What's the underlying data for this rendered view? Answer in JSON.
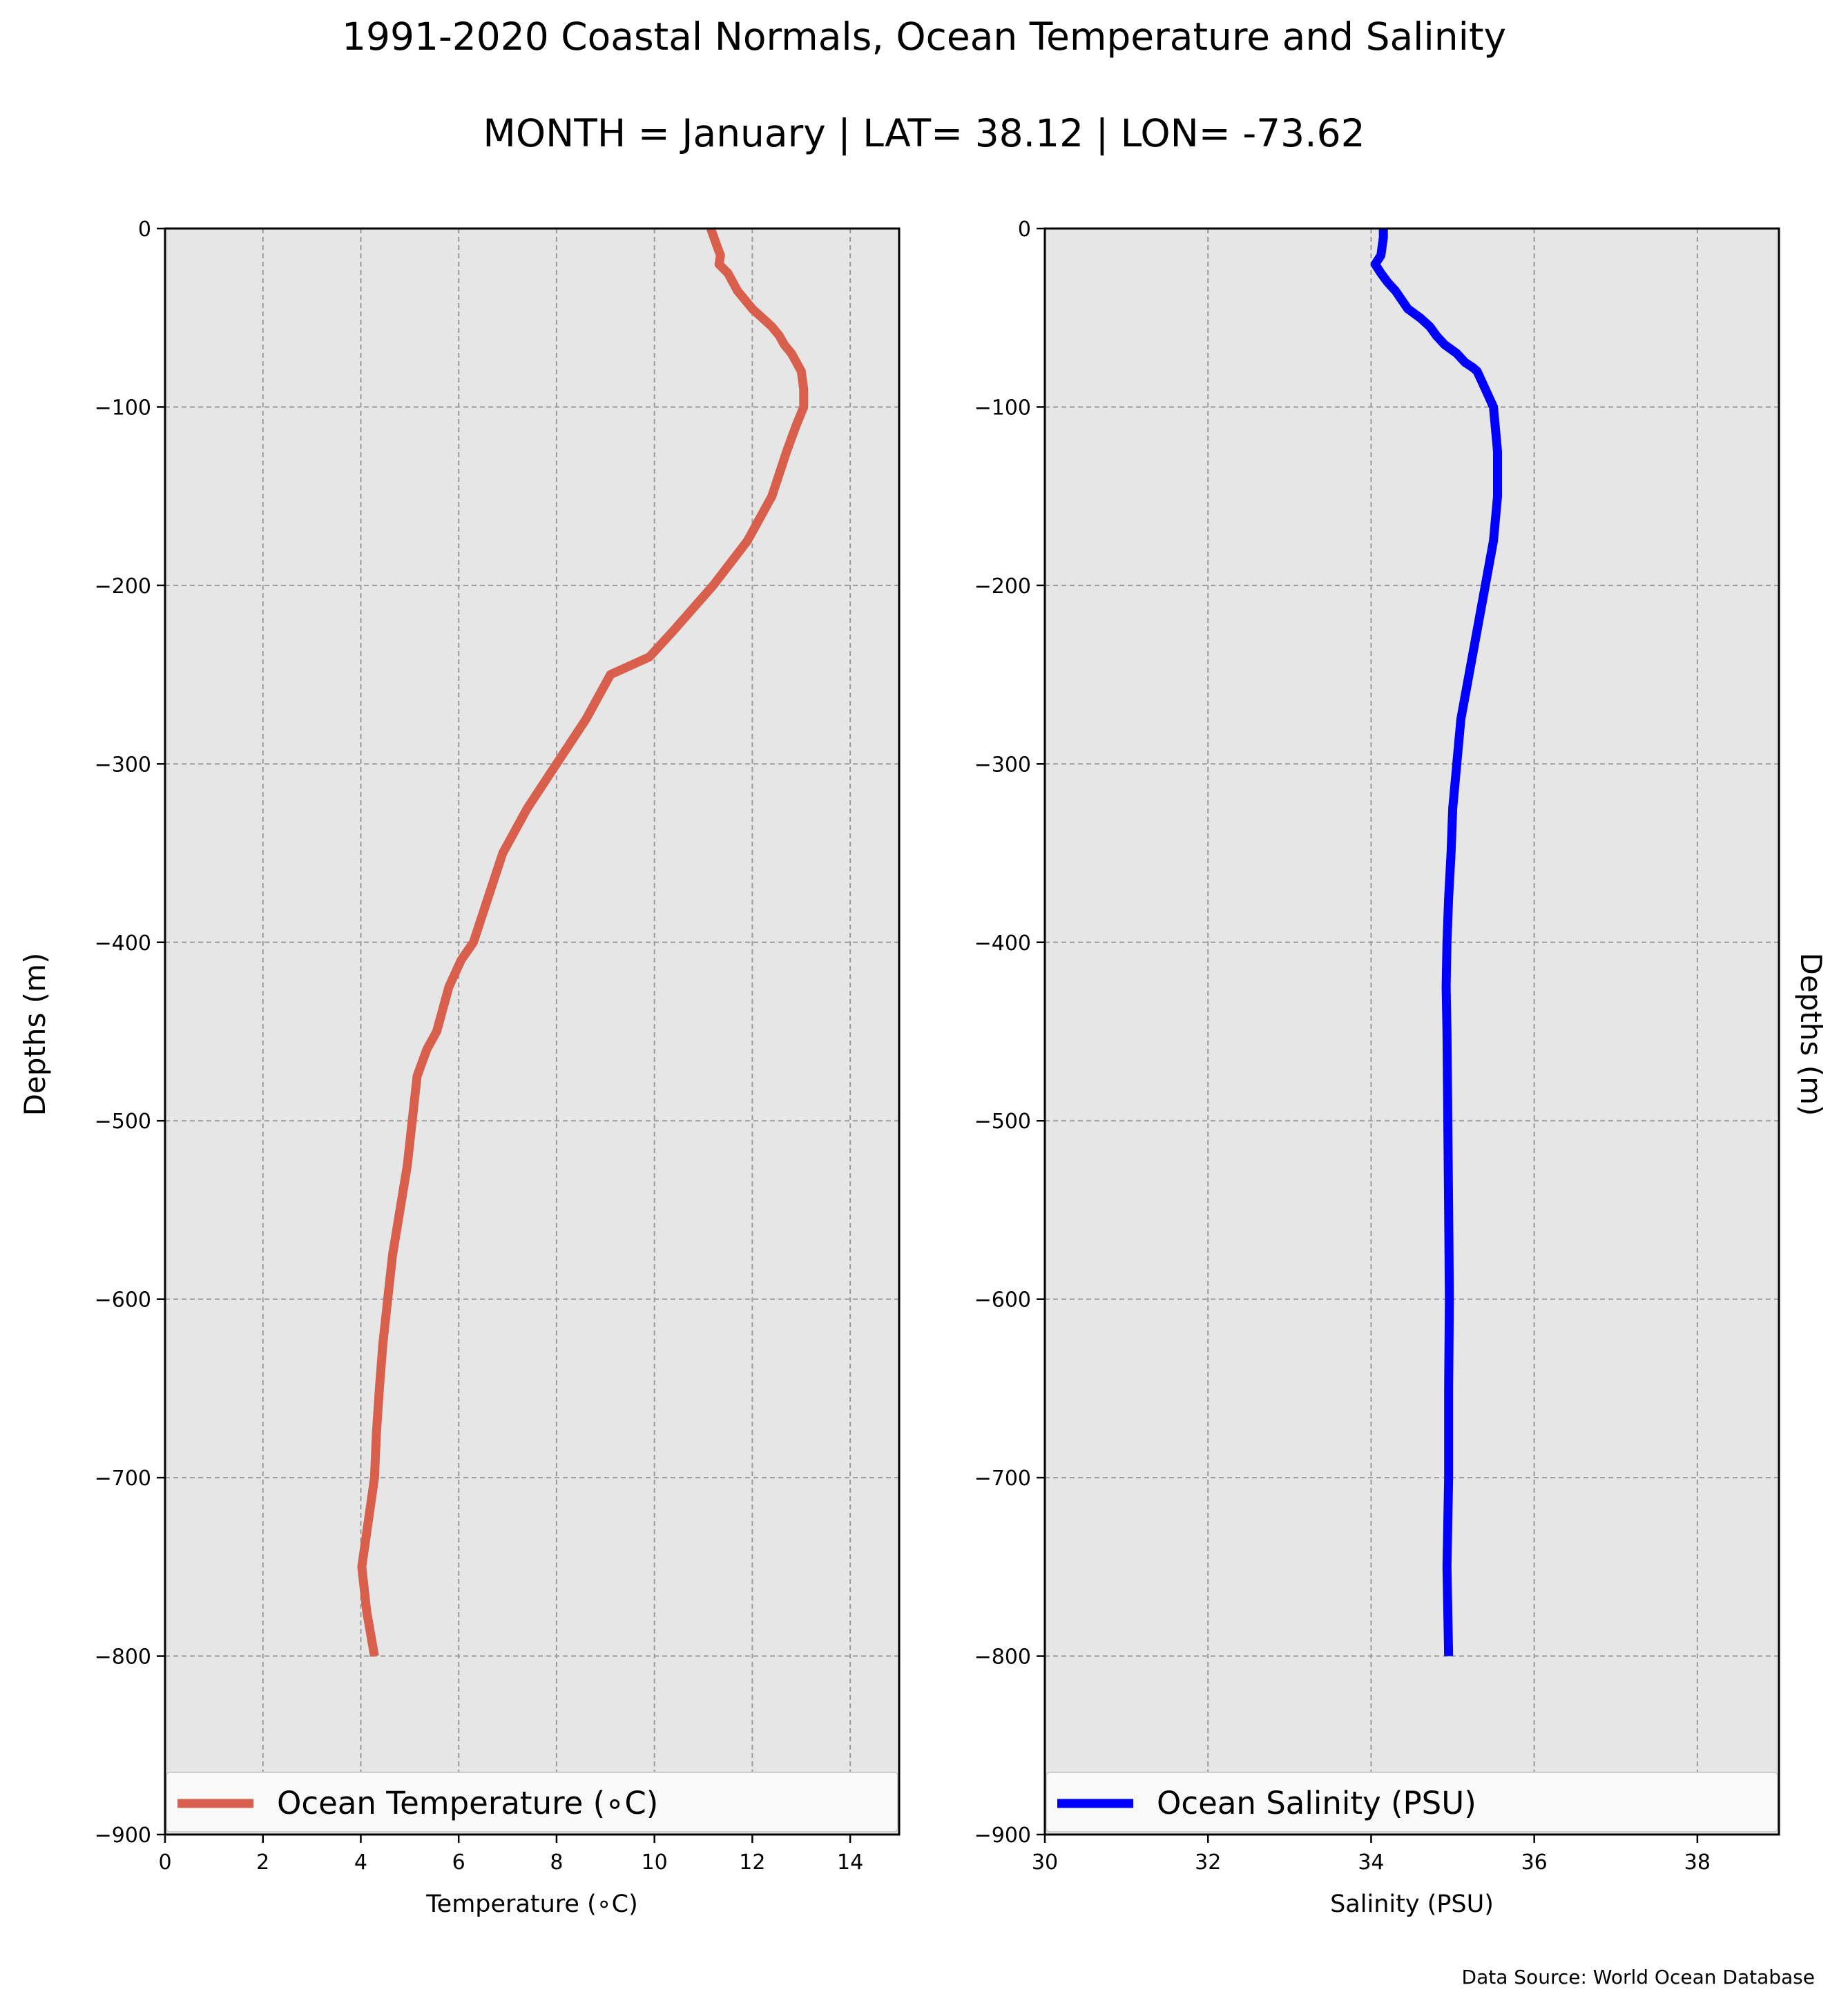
{
  "figure": {
    "title": "1991-2020 Coastal Normals, Ocean Temperature and Salinity",
    "subtitle": "MONTH = January | LAT= 38.12 | LON= -73.62",
    "source": "Data Source: World Ocean Database",
    "colors": {
      "panel_background": "#e6e6e6",
      "temperature": "#d95f4d",
      "salinity": "#0000ff"
    }
  },
  "chart_data": [
    {
      "type": "line",
      "xlabel": "Temperature (∘C)",
      "ylabel": "Depths (m)",
      "xlim": [
        0,
        15
      ],
      "ylim": [
        -900,
        0
      ],
      "xticks": [
        0,
        2,
        4,
        6,
        8,
        10,
        12,
        14
      ],
      "xtick_labels": [
        "0",
        "2",
        "4",
        "6",
        "8",
        "10",
        "12",
        "14"
      ],
      "yticks": [
        0,
        -100,
        -200,
        -300,
        -400,
        -500,
        -600,
        -700,
        -800,
        -900
      ],
      "ytick_labels": [
        "0",
        "−100",
        "−200",
        "−300",
        "−400",
        "−500",
        "−600",
        "−700",
        "−800",
        "−900"
      ],
      "grid": true,
      "legend": "bottom",
      "series": [
        {
          "name": "Ocean Temperature (∘C)",
          "color": "#d95f4d",
          "x": [
            11.15,
            11.28,
            11.35,
            11.32,
            11.5,
            11.6,
            11.7,
            11.85,
            12.0,
            12.2,
            12.4,
            12.55,
            12.65,
            12.8,
            12.9,
            13.0,
            13.05,
            13.05,
            12.9,
            12.7,
            12.4,
            11.9,
            11.2,
            10.4,
            9.9,
            9.1,
            8.6,
            8.0,
            7.4,
            6.9,
            6.6,
            6.3,
            6.05,
            5.8,
            5.55,
            5.35,
            5.15,
            5.05,
            4.95,
            4.8,
            4.65,
            4.55,
            4.45,
            4.38,
            4.32,
            4.28,
            4.15,
            4.02,
            4.12,
            4.28
          ],
          "y": [
            0,
            -10,
            -15,
            -20,
            -25,
            -30,
            -35,
            -40,
            -45,
            -50,
            -55,
            -60,
            -65,
            -70,
            -75,
            -80,
            -90,
            -100,
            -110,
            -125,
            -150,
            -175,
            -200,
            -225,
            -240,
            -250,
            -275,
            -300,
            -325,
            -350,
            -375,
            -400,
            -410,
            -425,
            -450,
            -460,
            -475,
            -500,
            -525,
            -550,
            -575,
            -600,
            -625,
            -650,
            -675,
            -700,
            -725,
            -750,
            -775,
            -800
          ]
        }
      ]
    },
    {
      "type": "line",
      "xlabel": "Salinity (PSU)",
      "ylabel": "Depths (m)",
      "xlim": [
        30,
        39
      ],
      "ylim": [
        -900,
        0
      ],
      "xticks": [
        30,
        32,
        34,
        36,
        38
      ],
      "xtick_labels": [
        "30",
        "32",
        "34",
        "36",
        "38"
      ],
      "yticks": [
        0,
        -100,
        -200,
        -300,
        -400,
        -500,
        -600,
        -700,
        -800,
        -900
      ],
      "ytick_labels": [
        "0",
        "−100",
        "−200",
        "−300",
        "−400",
        "−500",
        "−600",
        "−700",
        "−800",
        "−900"
      ],
      "grid": true,
      "legend": "bottom",
      "series": [
        {
          "name": "Ocean Salinity (PSU)",
          "color": "#0000ff",
          "x": [
            34.15,
            34.15,
            34.12,
            34.05,
            34.12,
            34.2,
            34.3,
            34.45,
            34.6,
            34.72,
            34.8,
            34.9,
            35.05,
            35.15,
            35.25,
            35.3,
            35.4,
            35.5,
            35.55,
            35.55,
            35.5,
            35.4,
            35.3,
            35.2,
            35.1,
            35.05,
            35.0,
            34.98,
            34.95,
            34.93,
            34.92,
            34.93,
            34.94,
            34.95,
            34.96,
            34.95,
            34.95,
            34.93,
            34.95
          ],
          "y": [
            0,
            -5,
            -15,
            -20,
            -25,
            -30,
            -35,
            -45,
            -50,
            -55,
            -60,
            -65,
            -70,
            -75,
            -78,
            -80,
            -90,
            -100,
            -125,
            -150,
            -175,
            -200,
            -225,
            -250,
            -275,
            -300,
            -325,
            -350,
            -375,
            -400,
            -425,
            -450,
            -500,
            -550,
            -600,
            -650,
            -700,
            -750,
            -800
          ]
        }
      ]
    }
  ]
}
